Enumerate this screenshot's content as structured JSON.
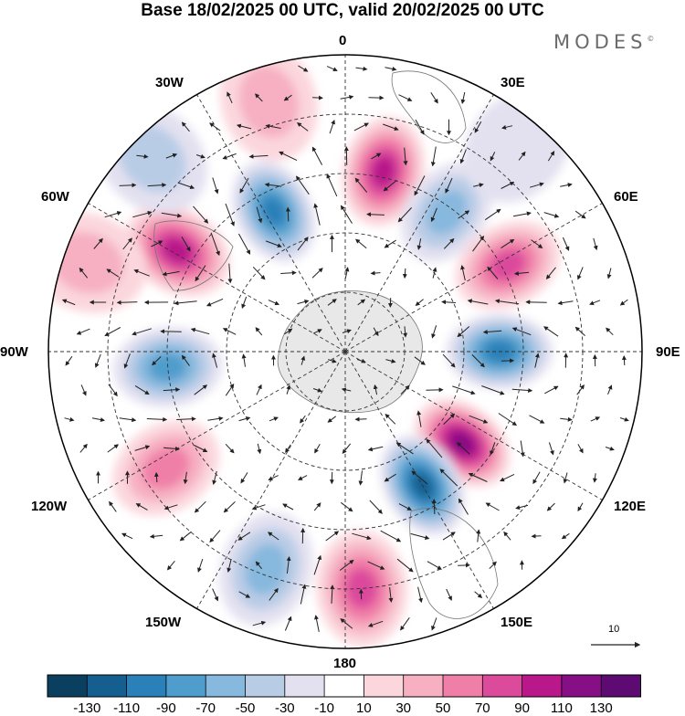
{
  "title": "Base 18/02/2025 00 UTC, valid 20/02/2025 00 UTC",
  "brand": "MODES",
  "brand_mark": "©",
  "longitude_labels": {
    "lon_0": "0",
    "lon_30e": "30E",
    "lon_60e": "60E",
    "lon_90e": "90E",
    "lon_120e": "120E",
    "lon_150e": "150E",
    "lon_180": "180",
    "lon_150w": "150W",
    "lon_120w": "120W",
    "lon_90w": "90W",
    "lon_60w": "60W",
    "lon_30w": "30W"
  },
  "projection": "south-polar-stereographic",
  "vector_reference": {
    "label": "10",
    "value": 10
  },
  "colorbar": {
    "colors": [
      "#0b3f5f",
      "#145f8f",
      "#2a80b8",
      "#4f9dcc",
      "#87b8dd",
      "#b9cce6",
      "#e3e1f0",
      "#ffffff",
      "#fbd7dd",
      "#f6b0c2",
      "#f07fa7",
      "#dc4a9c",
      "#b8188a",
      "#860f86",
      "#5d0a72"
    ],
    "ticks": [
      "-130",
      "-110",
      "-90",
      "-70",
      "-50",
      "-30",
      "-10",
      "10",
      "30",
      "50",
      "70",
      "90",
      "110",
      "130"
    ]
  },
  "anomalies": [
    {
      "lon": 12,
      "dist": 0.62,
      "value": 100
    },
    {
      "lon": 36,
      "dist": 0.58,
      "value": -60
    },
    {
      "lon": 62,
      "dist": 0.62,
      "value": 85
    },
    {
      "lon": 90,
      "dist": 0.52,
      "value": -95
    },
    {
      "lon": 128,
      "dist": 0.5,
      "value": 125
    },
    {
      "lon": 150,
      "dist": 0.52,
      "value": -110
    },
    {
      "lon": 176,
      "dist": 0.8,
      "value": 80
    },
    {
      "lon": 200,
      "dist": 0.78,
      "value": -55
    },
    {
      "lon": 237,
      "dist": 0.72,
      "value": 50
    },
    {
      "lon": 265,
      "dist": 0.6,
      "value": -75
    },
    {
      "lon": 301,
      "dist": 0.66,
      "value": 95
    },
    {
      "lon": 333,
      "dist": 0.53,
      "value": -95
    },
    {
      "lon": 289,
      "dist": 0.92,
      "value": 40
    },
    {
      "lon": 315,
      "dist": 0.92,
      "value": -30
    },
    {
      "lon": 343,
      "dist": 0.88,
      "value": 30
    },
    {
      "lon": 40,
      "dist": 0.9,
      "value": -25
    }
  ]
}
